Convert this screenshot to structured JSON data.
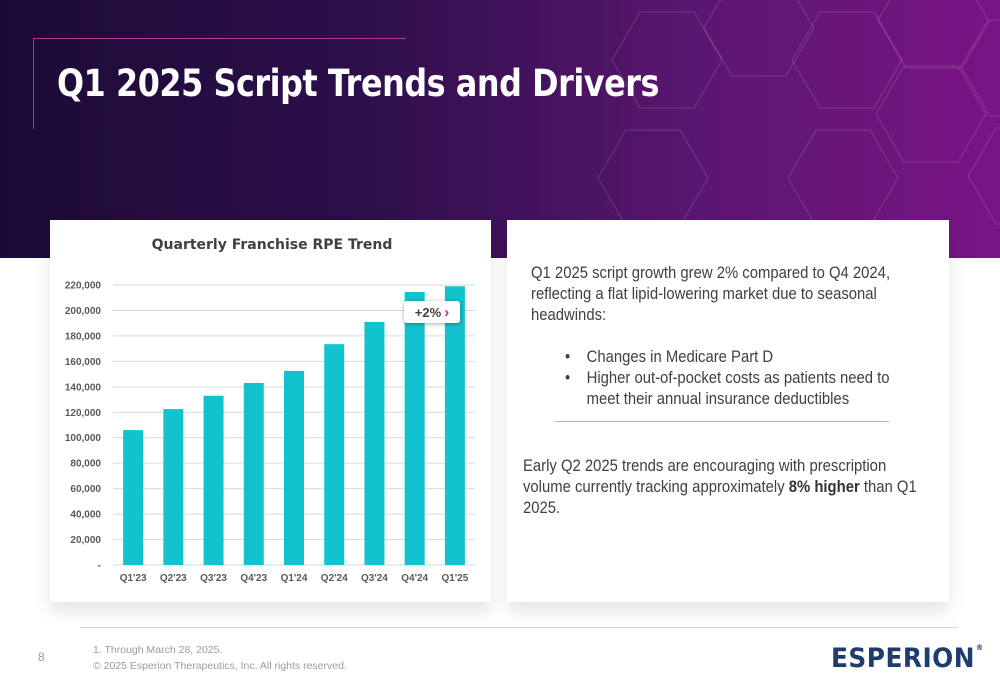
{
  "slide": {
    "title": "Q1 2025 Script Trends and Drivers",
    "page_number": "8"
  },
  "colors": {
    "header_gradient_start": "#1c0a36",
    "header_gradient_end": "#7a1485",
    "bar_color": "#12c3cf",
    "accent_magenta": "#c1299a",
    "logo_blue": "#1f3c6e"
  },
  "chart_data": {
    "type": "bar",
    "title": "Quarterly Franchise RPE Trend",
    "categories": [
      "Q1'23",
      "Q2'23",
      "Q3'23",
      "Q4'23",
      "Q1'24",
      "Q2'24",
      "Q3'24",
      "Q4'24",
      "Q1'25"
    ],
    "values": [
      106000,
      122500,
      133000,
      143000,
      152500,
      173500,
      191000,
      214500,
      219000
    ],
    "ylim": [
      0,
      220000
    ],
    "yticks": [
      "-",
      "20,000",
      "40,000",
      "60,000",
      "80,000",
      "100,000",
      "120,000",
      "140,000",
      "160,000",
      "180,000",
      "200,000",
      "220,000"
    ],
    "grid": true,
    "legend": "none",
    "annotation": "+2%"
  },
  "text_panel": {
    "paragraph1": "Q1 2025 script growth grew 2% compared to Q4 2024, reflecting a flat lipid-lowering market due to seasonal headwinds:",
    "bullets": [
      "Changes in Medicare Part D",
      "Higher out-of-pocket costs as patients need to meet their annual insurance deductibles"
    ],
    "paragraph2_pre": "Early Q2 2025 trends are encouraging with prescription volume currently tracking approximately ",
    "paragraph2_bold": "8% higher",
    "paragraph2_post": " than Q1 2025."
  },
  "footer": {
    "footnote1": "1. Through March 28, 2025.",
    "footnote2": "© 2025 Esperion Therapeutics, Inc. All rights reserved.",
    "logo_text": "ESPERION",
    "logo_mark": "®"
  }
}
